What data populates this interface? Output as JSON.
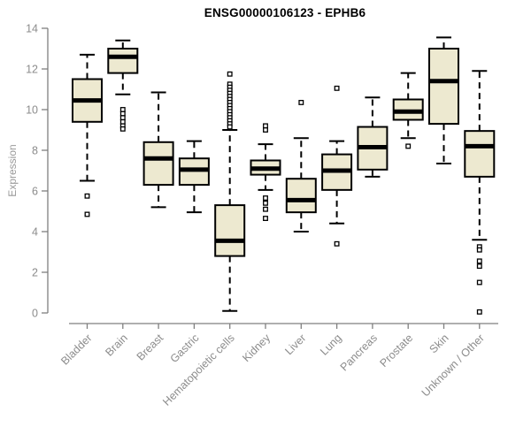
{
  "page": {
    "background": "#ffffff"
  },
  "chart_data": {
    "type": "boxplot",
    "title": "ENSG00000106123 - EPHB6",
    "ylabel": "Expression",
    "ylim": [
      0,
      14
    ],
    "yticks": [
      0,
      2,
      4,
      6,
      8,
      10,
      12,
      14
    ],
    "grid": false,
    "legend": false,
    "colors": {
      "box_fill": "#EDE9D0",
      "box_border": "#000000",
      "median": "#000000",
      "whisker": "#000000",
      "outlier_stroke": "#000000",
      "axis": "#7f7f7f",
      "tick_text": "#8c8c8c",
      "title_text": "#000000"
    },
    "categories": [
      "Bladder",
      "Brain",
      "Breast",
      "Gastric",
      "Hematopoietic cells",
      "Kidney",
      "Liver",
      "Lung",
      "Pancreas",
      "Prostate",
      "Skin",
      "Unknown / Other"
    ],
    "series": [
      {
        "category": "Bladder",
        "whisker_low": 6.5,
        "q1": 9.4,
        "median": 10.45,
        "q3": 11.5,
        "whisker_high": 12.7,
        "outliers": [
          5.75,
          4.85
        ]
      },
      {
        "category": "Brain",
        "whisker_low": 10.75,
        "q1": 11.8,
        "median": 12.6,
        "q3": 13.0,
        "whisker_high": 13.4,
        "outliers": [
          10.0,
          9.8,
          9.6,
          9.4,
          9.2,
          9.05
        ]
      },
      {
        "category": "Breast",
        "whisker_low": 5.2,
        "q1": 6.3,
        "median": 7.6,
        "q3": 8.4,
        "whisker_high": 10.85,
        "outliers": []
      },
      {
        "category": "Gastric",
        "whisker_low": 4.95,
        "q1": 6.3,
        "median": 7.05,
        "q3": 7.6,
        "whisker_high": 8.45,
        "outliers": []
      },
      {
        "category": "Hematopoietic cells",
        "whisker_low": 0.1,
        "q1": 2.8,
        "median": 3.55,
        "q3": 5.3,
        "whisker_high": 9.0,
        "outliers": [
          11.75,
          11.25,
          11.1,
          10.95,
          10.8,
          10.65,
          10.5,
          10.35,
          10.2,
          10.05,
          9.9,
          9.75,
          9.6,
          9.45,
          9.3,
          9.15
        ]
      },
      {
        "category": "Kidney",
        "whisker_low": 6.05,
        "q1": 6.8,
        "median": 7.1,
        "q3": 7.5,
        "whisker_high": 8.3,
        "outliers": [
          9.2,
          9.0,
          5.65,
          5.4,
          5.1,
          4.65
        ]
      },
      {
        "category": "Liver",
        "whisker_low": 4.0,
        "q1": 4.95,
        "median": 5.55,
        "q3": 6.6,
        "whisker_high": 8.6,
        "outliers": [
          10.35
        ]
      },
      {
        "category": "Lung",
        "whisker_low": 4.4,
        "q1": 6.05,
        "median": 7.0,
        "q3": 7.8,
        "whisker_high": 8.45,
        "outliers": [
          11.05,
          3.4
        ]
      },
      {
        "category": "Pancreas",
        "whisker_low": 6.7,
        "q1": 7.05,
        "median": 8.15,
        "q3": 9.15,
        "whisker_high": 10.6,
        "outliers": []
      },
      {
        "category": "Prostate",
        "whisker_low": 8.6,
        "q1": 9.5,
        "median": 9.9,
        "q3": 10.5,
        "whisker_high": 11.8,
        "outliers": [
          8.2
        ]
      },
      {
        "category": "Skin",
        "whisker_low": 7.35,
        "q1": 9.3,
        "median": 11.4,
        "q3": 13.0,
        "whisker_high": 13.55,
        "outliers": []
      },
      {
        "category": "Unknown / Other",
        "whisker_low": 3.6,
        "q1": 6.7,
        "median": 8.2,
        "q3": 8.95,
        "whisker_high": 11.9,
        "outliers": [
          3.25,
          3.1,
          2.55,
          2.3,
          1.5,
          0.05
        ]
      }
    ]
  }
}
